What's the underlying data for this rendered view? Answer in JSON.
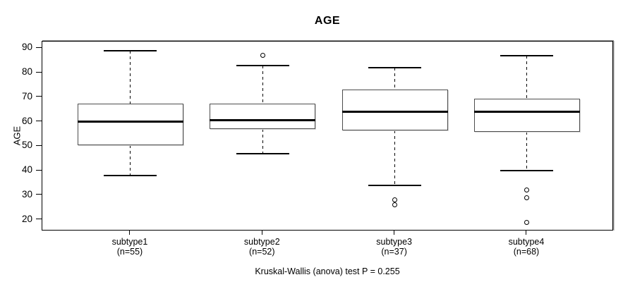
{
  "chart_data": {
    "type": "boxplot",
    "title": "AGE",
    "ylabel": "AGE",
    "xlabel": "",
    "caption": "Kruskal-Wallis (anova) test P = 0.255",
    "ylim": [
      15.3,
      92.7
    ],
    "yticks": [
      20,
      30,
      40,
      50,
      60,
      70,
      80,
      90
    ],
    "grid": false,
    "legend": "none",
    "groups": [
      {
        "label": "subtype1",
        "sublabel": "(n=55)",
        "n": 55,
        "lower_whisker": 38,
        "q1": 50.5,
        "median": 60,
        "q3": 67.5,
        "upper_whisker": 89,
        "outliers": []
      },
      {
        "label": "subtype2",
        "sublabel": "(n=52)",
        "n": 52,
        "lower_whisker": 47,
        "q1": 57,
        "median": 60.5,
        "q3": 67.5,
        "upper_whisker": 83,
        "outliers": [
          87
        ]
      },
      {
        "label": "subtype3",
        "sublabel": "(n=37)",
        "n": 37,
        "lower_whisker": 34,
        "q1": 56.5,
        "median": 64,
        "q3": 73,
        "upper_whisker": 82,
        "outliers": [
          26,
          28
        ]
      },
      {
        "label": "subtype4",
        "sublabel": "(n=68)",
        "n": 68,
        "lower_whisker": 40,
        "q1": 56,
        "median": 64,
        "q3": 69.5,
        "upper_whisker": 87,
        "outliers": [
          19,
          29,
          32
        ]
      }
    ],
    "colors": {
      "box_border": "#4d4d4d",
      "median": "#000000",
      "whisker": "#000000",
      "frame": "#000000",
      "frame_shadow": "#8f8f8f",
      "text": "#000000",
      "background": "#ffffff"
    }
  }
}
